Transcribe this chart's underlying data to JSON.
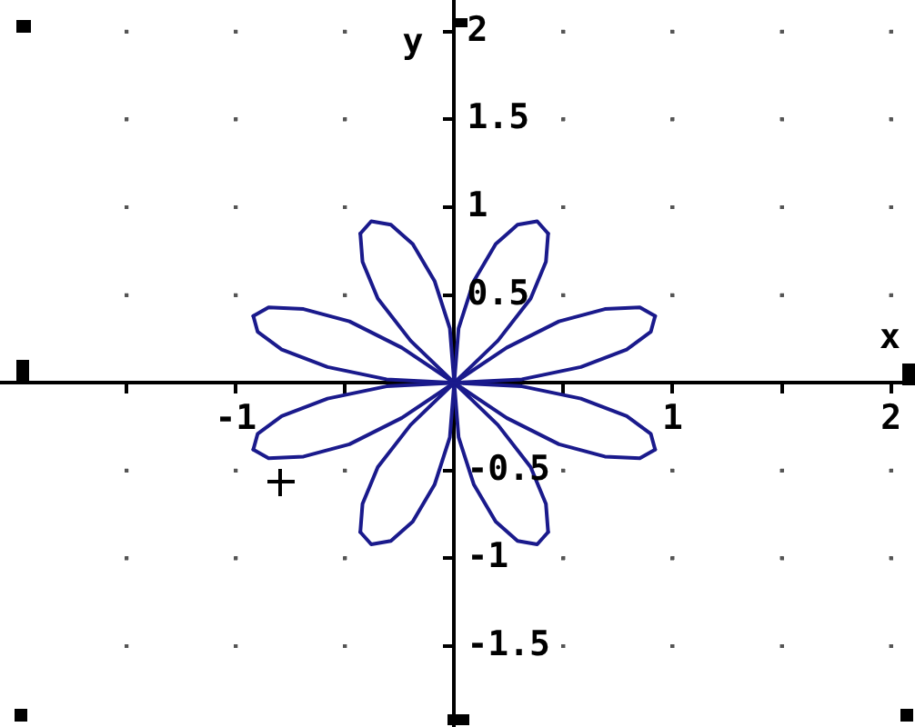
{
  "chart_data": {
    "type": "line",
    "xlabel": "x",
    "ylabel": "y",
    "series": [
      {
        "color": "#1a1a8c",
        "x": [
          -0.92,
          -0.9,
          -0.79,
          -0.58,
          -0.31,
          0,
          0.31,
          0.58,
          0.79,
          0.9,
          0.92
        ],
        "values": [
          0.38,
          0.29,
          0.19,
          0.09,
          0.02,
          0,
          0.02,
          0.09,
          0.19,
          0.29,
          0.38
        ]
      },
      {
        "color": "#1a1a8c",
        "x": [
          0.92,
          0.85,
          0.69,
          0.48,
          0.24,
          0,
          -0.2,
          -0.35,
          -0.42,
          -0.43
        ],
        "values": [
          0.38,
          0.43,
          0.42,
          0.35,
          0.2,
          0,
          -0.24,
          -0.48,
          -0.69,
          -0.85
        ]
      },
      {
        "color": "#1a1a8c",
        "x": [
          -0.43,
          -0.38,
          -0.29,
          -0.19,
          -0.09,
          -0.02,
          0,
          -0.02,
          -0.09,
          -0.19,
          -0.29,
          -0.38,
          -0.43
        ],
        "values": [
          -0.85,
          -0.92,
          -0.9,
          -0.79,
          -0.58,
          -0.31,
          0,
          0.31,
          0.58,
          0.79,
          0.9,
          0.92,
          0.85
        ]
      },
      {
        "color": "#1a1a8c",
        "x": [
          -0.43,
          -0.42,
          -0.35,
          -0.2,
          0,
          0.24,
          0.48,
          0.69,
          0.85,
          0.92
        ],
        "values": [
          0.85,
          0.69,
          0.48,
          0.24,
          0,
          -0.2,
          -0.35,
          -0.42,
          -0.43,
          -0.38
        ]
      },
      {
        "color": "#1a1a8c",
        "x": [
          0.92,
          0.9,
          0.79,
          0.58,
          0.31,
          0,
          -0.31,
          -0.58,
          -0.79,
          -0.9,
          -0.92
        ],
        "values": [
          -0.38,
          -0.29,
          -0.19,
          -0.09,
          -0.02,
          0,
          -0.02,
          -0.09,
          -0.19,
          -0.29,
          -0.38
        ]
      },
      {
        "color": "#1a1a8c",
        "x": [
          -0.92,
          -0.85,
          -0.69,
          -0.48,
          -0.24,
          0,
          0.2,
          0.35,
          0.42,
          0.43
        ],
        "values": [
          -0.38,
          -0.43,
          -0.42,
          -0.35,
          -0.2,
          0,
          0.24,
          0.48,
          0.69,
          0.85
        ]
      },
      {
        "color": "#1a1a8c",
        "x": [
          0.43,
          0.38,
          0.29,
          0.19,
          0.09,
          0.02,
          0,
          0.02,
          0.09,
          0.19,
          0.29,
          0.38,
          0.43
        ],
        "values": [
          0.85,
          0.92,
          0.9,
          0.79,
          0.58,
          0.31,
          0,
          -0.31,
          -0.58,
          -0.79,
          -0.9,
          -0.92,
          -0.85
        ]
      },
      {
        "color": "#1a1a8c",
        "x": [
          0.43,
          0.42,
          0.35,
          0.2,
          0,
          -0.24,
          -0.48,
          -0.69,
          -0.85,
          -0.92
        ],
        "values": [
          -0.85,
          -0.69,
          -0.48,
          -0.24,
          0,
          0.2,
          0.35,
          0.42,
          0.43,
          0.38
        ]
      }
    ],
    "marker": "none",
    "line_style": "solid",
    "xlim": [
      -2.08,
      2.11
    ],
    "ylim": [
      -1.96,
      2.18
    ],
    "xticks": [
      {
        "value": -1.5,
        "label": null
      },
      -1,
      {
        "value": -0.5,
        "label": null
      },
      {
        "value": 0.5,
        "label": null
      },
      1,
      {
        "value": 1.5,
        "label": null
      },
      2
    ],
    "yticks": [
      -1.5,
      -1,
      -0.5,
      0.5,
      1,
      1.5,
      2
    ],
    "grid": true,
    "legend": false
  }
}
